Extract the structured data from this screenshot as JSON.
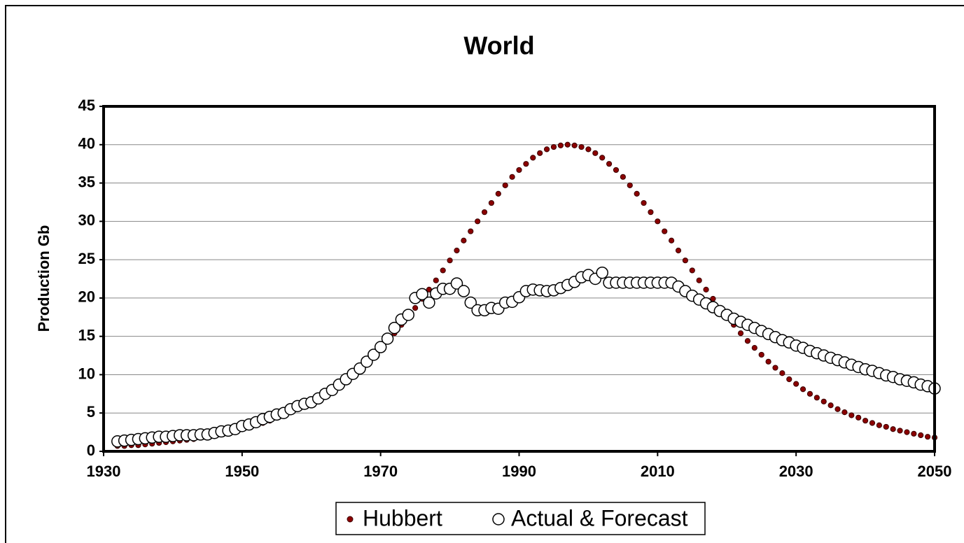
{
  "chart_data": {
    "type": "scatter",
    "title": "World",
    "ylabel": "Production Gb",
    "x": [
      1932,
      1933,
      1934,
      1935,
      1936,
      1937,
      1938,
      1939,
      1940,
      1941,
      1942,
      1943,
      1944,
      1945,
      1946,
      1947,
      1948,
      1949,
      1950,
      1951,
      1952,
      1953,
      1954,
      1955,
      1956,
      1957,
      1958,
      1959,
      1960,
      1961,
      1962,
      1963,
      1964,
      1965,
      1966,
      1967,
      1968,
      1969,
      1970,
      1971,
      1972,
      1973,
      1974,
      1975,
      1976,
      1977,
      1978,
      1979,
      1980,
      1981,
      1982,
      1983,
      1984,
      1985,
      1986,
      1987,
      1988,
      1989,
      1990,
      1991,
      1992,
      1993,
      1994,
      1995,
      1996,
      1997,
      1998,
      1999,
      2000,
      2001,
      2002,
      2003,
      2004,
      2005,
      2006,
      2007,
      2008,
      2009,
      2010,
      2011,
      2012,
      2013,
      2014,
      2015,
      2016,
      2017,
      2018,
      2019,
      2020,
      2021,
      2022,
      2023,
      2024,
      2025,
      2026,
      2027,
      2028,
      2029,
      2030,
      2031,
      2032,
      2033,
      2034,
      2035,
      2036,
      2037,
      2038,
      2039,
      2040,
      2041,
      2042,
      2043,
      2044,
      2045,
      2046,
      2047,
      2048,
      2049,
      2050
    ],
    "series": [
      {
        "name": "Hubbert",
        "color": "#8b0000",
        "values": [
          0.7,
          0.7,
          0.8,
          0.8,
          0.9,
          1.0,
          1.1,
          1.2,
          1.3,
          1.4,
          1.5,
          1.6,
          1.8,
          1.9,
          2.1,
          2.3,
          2.5,
          2.7,
          2.9,
          3.2,
          3.4,
          3.7,
          4.0,
          4.4,
          4.7,
          5.1,
          5.5,
          6.0,
          6.5,
          7.0,
          7.5,
          8.1,
          8.8,
          9.4,
          10.2,
          10.9,
          11.7,
          12.6,
          13.5,
          14.4,
          15.4,
          16.5,
          17.6,
          18.7,
          19.9,
          21.1,
          22.3,
          23.6,
          24.9,
          26.2,
          27.5,
          28.7,
          30.0,
          31.2,
          32.4,
          33.6,
          34.7,
          35.8,
          36.7,
          37.5,
          38.3,
          38.9,
          39.4,
          39.7,
          39.9,
          40,
          39.9,
          39.7,
          39.4,
          38.9,
          38.3,
          37.5,
          36.7,
          35.8,
          34.7,
          33.6,
          32.4,
          31.2,
          30.0,
          28.7,
          27.5,
          26.2,
          24.9,
          23.6,
          22.3,
          21.1,
          19.9,
          18.7,
          17.6,
          16.5,
          15.4,
          14.4,
          13.5,
          12.6,
          11.7,
          10.9,
          10.2,
          9.4,
          8.8,
          8.1,
          7.5,
          7.0,
          6.5,
          6.0,
          5.5,
          5.1,
          4.7,
          4.4,
          4.0,
          3.7,
          3.4,
          3.2,
          2.9,
          2.7,
          2.5,
          2.3,
          2.1,
          1.9,
          1.8
        ]
      },
      {
        "name": "Actual & Forecast",
        "color": "#ffffff",
        "values": [
          1.3,
          1.4,
          1.5,
          1.6,
          1.7,
          1.8,
          1.9,
          1.9,
          2.0,
          2.1,
          2.1,
          2.1,
          2.2,
          2.2,
          2.4,
          2.6,
          2.7,
          2.9,
          3.3,
          3.5,
          3.8,
          4.2,
          4.5,
          4.8,
          5.0,
          5.5,
          5.9,
          6.2,
          6.4,
          6.9,
          7.5,
          8.0,
          8.7,
          9.4,
          10.1,
          10.8,
          11.7,
          12.6,
          13.6,
          14.7,
          16.1,
          17.2,
          17.8,
          20.0,
          20.5,
          19.4,
          20.6,
          21.2,
          21.2,
          21.9,
          20.9,
          19.4,
          18.4,
          18.4,
          18.7,
          18.6,
          19.4,
          19.5,
          20.1,
          20.9,
          21.1,
          21.0,
          20.9,
          21.0,
          21.3,
          21.7,
          22.1,
          22.7,
          23.0,
          22.5,
          23.3,
          22.0,
          22.0,
          22.0,
          22.0,
          22.0,
          22.0,
          22.0,
          22.0,
          22.0,
          22.0,
          21.5,
          20.9,
          20.3,
          19.8,
          19.3,
          18.8,
          18.3,
          17.8,
          17.3,
          16.9,
          16.5,
          16.1,
          15.7,
          15.3,
          14.9,
          14.5,
          14.2,
          13.8,
          13.5,
          13.1,
          12.8,
          12.5,
          12.2,
          11.9,
          11.6,
          11.3,
          11.0,
          10.7,
          10.5,
          10.2,
          9.9,
          9.7,
          9.4,
          9.2,
          9.0,
          8.7,
          8.5,
          8.2
        ]
      }
    ],
    "xlim": [
      1930,
      2050
    ],
    "xticks": [
      1930,
      1950,
      1970,
      1990,
      2010,
      2030,
      2050
    ],
    "ylim": [
      0,
      45
    ],
    "yticks": [
      0,
      5,
      10,
      15,
      20,
      25,
      30,
      35,
      40,
      45
    ],
    "grid": true,
    "legend": "bottom"
  }
}
